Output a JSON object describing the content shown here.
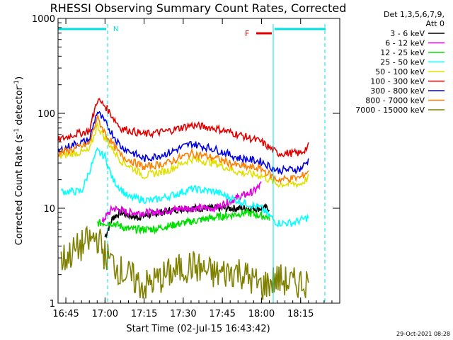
{
  "chart_data": {
    "type": "line",
    "title": "RHESSI Observing Summary Count Rates, Corrected",
    "xlabel": "Start Time (02-Jul-15 16:43:42)",
    "ylabel": "Corrected Count Rate (s",
    "ylabel_sup1": "-1",
    "ylabel_mid": " detector",
    "ylabel_sup2": "-1",
    "ylabel_end": ")",
    "yscale": "log",
    "ylim": [
      1,
      1000
    ],
    "xlim_minutes": [
      16.7,
      18.5
    ],
    "x_ticks": [
      {
        "m": 16.75,
        "label": "16:45"
      },
      {
        "m": 17.0,
        "label": "17:00"
      },
      {
        "m": 17.25,
        "label": "17:15"
      },
      {
        "m": 17.5,
        "label": "17:30"
      },
      {
        "m": 17.75,
        "label": "17:45"
      },
      {
        "m": 18.0,
        "label": "18:00"
      },
      {
        "m": 18.25,
        "label": "18:15"
      }
    ],
    "y_ticks": [
      {
        "v": 1000,
        "label": "1000"
      },
      {
        "v": 100,
        "label": "100"
      },
      {
        "v": 10,
        "label": "10"
      },
      {
        "v": 1,
        "label": "1"
      }
    ],
    "legend_header": [
      "Det 1,3,5,6,7,9,",
      "Att 0"
    ],
    "legend_placement": "right",
    "timestamp": "29-Oct-2021 08:28",
    "annotations": {
      "night_label": "N",
      "flare_label": "F",
      "night_color": "#00e0e0",
      "flare_color": "#e00000"
    },
    "series": [
      {
        "name": "3 - 6 keV",
        "color": "#000000",
        "points": [
          [
            17.0,
            5
          ],
          [
            17.05,
            8
          ],
          [
            17.1,
            9
          ],
          [
            17.2,
            8
          ],
          [
            17.35,
            9
          ],
          [
            17.5,
            10
          ],
          [
            17.7,
            10
          ],
          [
            17.9,
            10
          ],
          [
            18.0,
            10
          ],
          [
            18.05,
            10
          ]
        ]
      },
      {
        "name": "6 - 12 keV",
        "color": "#e000e0",
        "points": [
          [
            16.98,
            7
          ],
          [
            17.0,
            8
          ],
          [
            17.05,
            10
          ],
          [
            17.15,
            9
          ],
          [
            17.3,
            9
          ],
          [
            17.5,
            10
          ],
          [
            17.7,
            10
          ],
          [
            17.85,
            13
          ],
          [
            17.95,
            15
          ],
          [
            18.0,
            18
          ]
        ]
      },
      {
        "name": "12 - 25 keV",
        "color": "#00e000",
        "points": [
          [
            16.95,
            7
          ],
          [
            17.0,
            7
          ],
          [
            17.05,
            7
          ],
          [
            17.15,
            6
          ],
          [
            17.3,
            6
          ],
          [
            17.5,
            7
          ],
          [
            17.7,
            8
          ],
          [
            17.9,
            9
          ],
          [
            18.05,
            8
          ]
        ]
      },
      {
        "name": "25 - 50 keV",
        "color": "#00ffff",
        "points": [
          [
            16.72,
            15
          ],
          [
            16.85,
            15
          ],
          [
            16.95,
            40
          ],
          [
            17.0,
            35
          ],
          [
            17.05,
            20
          ],
          [
            17.15,
            13
          ],
          [
            17.3,
            12
          ],
          [
            17.45,
            14
          ],
          [
            17.55,
            16
          ],
          [
            17.7,
            15
          ],
          [
            17.85,
            12
          ],
          [
            18.0,
            10
          ],
          [
            18.1,
            7
          ],
          [
            18.2,
            7
          ],
          [
            18.3,
            8
          ]
        ]
      },
      {
        "name": "50 - 100 keV",
        "color": "#e0e000",
        "points": [
          [
            16.7,
            35
          ],
          [
            16.8,
            38
          ],
          [
            16.9,
            40
          ],
          [
            16.95,
            75
          ],
          [
            17.0,
            55
          ],
          [
            17.1,
            32
          ],
          [
            17.25,
            22
          ],
          [
            17.4,
            25
          ],
          [
            17.55,
            33
          ],
          [
            17.7,
            30
          ],
          [
            17.85,
            24
          ],
          [
            18.0,
            22
          ],
          [
            18.1,
            18
          ],
          [
            18.25,
            18
          ],
          [
            18.3,
            21
          ]
        ]
      },
      {
        "name": "100 - 300 keV",
        "color": "#e00000",
        "points": [
          [
            16.7,
            52
          ],
          [
            16.8,
            60
          ],
          [
            16.9,
            65
          ],
          [
            16.95,
            140
          ],
          [
            17.0,
            120
          ],
          [
            17.1,
            70
          ],
          [
            17.25,
            60
          ],
          [
            17.4,
            65
          ],
          [
            17.55,
            75
          ],
          [
            17.7,
            70
          ],
          [
            17.85,
            60
          ],
          [
            18.0,
            50
          ],
          [
            18.1,
            38
          ],
          [
            18.25,
            38
          ],
          [
            18.3,
            45
          ]
        ]
      },
      {
        "name": "300 - 800 keV",
        "color": "#0000e0",
        "points": [
          [
            16.7,
            40
          ],
          [
            16.8,
            47
          ],
          [
            16.9,
            52
          ],
          [
            16.95,
            105
          ],
          [
            17.0,
            80
          ],
          [
            17.1,
            45
          ],
          [
            17.25,
            33
          ],
          [
            17.4,
            38
          ],
          [
            17.55,
            48
          ],
          [
            17.7,
            42
          ],
          [
            17.85,
            34
          ],
          [
            18.0,
            31
          ],
          [
            18.1,
            25
          ],
          [
            18.25,
            26
          ],
          [
            18.3,
            32
          ]
        ]
      },
      {
        "name": "800 - 7000 keV",
        "color": "#ff8000",
        "points": [
          [
            16.7,
            38
          ],
          [
            16.8,
            42
          ],
          [
            16.9,
            48
          ],
          [
            16.95,
            90
          ],
          [
            17.0,
            62
          ],
          [
            17.1,
            36
          ],
          [
            17.25,
            27
          ],
          [
            17.4,
            30
          ],
          [
            17.55,
            38
          ],
          [
            17.7,
            34
          ],
          [
            17.85,
            28
          ],
          [
            18.0,
            26
          ],
          [
            18.1,
            20
          ],
          [
            18.25,
            21
          ],
          [
            18.3,
            25
          ]
        ]
      },
      {
        "name": "7000 - 15000 keV",
        "color": "#808000",
        "points": [
          [
            16.72,
            2.8
          ],
          [
            16.85,
            4.0
          ],
          [
            16.95,
            5.0
          ],
          [
            17.0,
            3.2
          ],
          [
            17.1,
            2.2
          ],
          [
            17.25,
            1.5
          ],
          [
            17.4,
            2.0
          ],
          [
            17.55,
            2.5
          ],
          [
            17.7,
            2.0
          ],
          [
            17.85,
            2.2
          ],
          [
            18.0,
            1.5
          ],
          [
            18.1,
            1.8
          ],
          [
            18.2,
            1.6
          ],
          [
            18.3,
            1.7
          ]
        ]
      }
    ]
  }
}
